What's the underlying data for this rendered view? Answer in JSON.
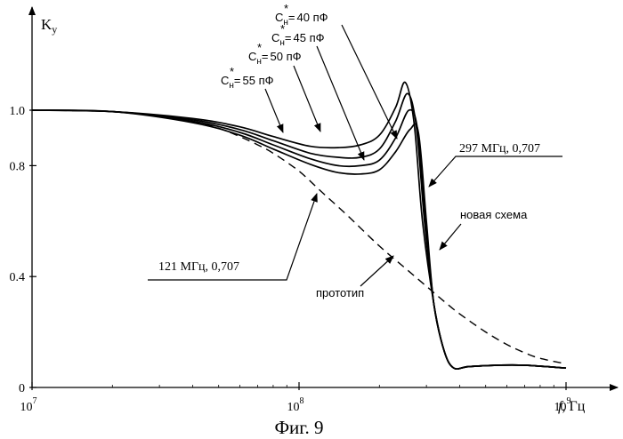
{
  "chart_data": {
    "type": "line",
    "caption": "Фиг. 9",
    "ylabel_main": "K",
    "ylabel_sub": "у",
    "xlabel_italic": "f",
    "xlabel_unit": ", Гц",
    "x_scale": "log",
    "xlim": [
      10000000,
      1000000000
    ],
    "ylim": [
      0,
      1.0
    ],
    "grid": false,
    "x_ticks": [
      {
        "value": 10000000,
        "base": "10",
        "exp": "7"
      },
      {
        "value": 100000000,
        "base": "10",
        "exp": "8"
      },
      {
        "value": 1000000000,
        "base": "10",
        "exp": "9"
      }
    ],
    "y_ticks": [
      {
        "value": 0,
        "label": "0"
      },
      {
        "value": 0.4,
        "label": "0.4"
      },
      {
        "value": 0.8,
        "label": "0.8"
      },
      {
        "value": 1.0,
        "label": "1.0"
      }
    ],
    "series": [
      {
        "name": "",
        "style": "solid",
        "cap_label": "55 пФ",
        "x": [
          10000000,
          20000000,
          40000000,
          60000000,
          80000000,
          110000000,
          140000000,
          170000000,
          200000000,
          230000000,
          250000000,
          270000000,
          290000000,
          320000000,
          350000000,
          380000000,
          430000000,
          550000000,
          700000000,
          1000000000
        ],
        "y": [
          1.0,
          0.995,
          0.97,
          0.94,
          0.905,
          0.87,
          0.865,
          0.875,
          0.91,
          1.01,
          1.1,
          0.95,
          0.6,
          0.3,
          0.13,
          0.07,
          0.075,
          0.08,
          0.08,
          0.07
        ]
      },
      {
        "name": "",
        "style": "solid",
        "cap_label": "50 пФ",
        "x": [
          10000000,
          20000000,
          40000000,
          60000000,
          80000000,
          110000000,
          140000000,
          170000000,
          200000000,
          230000000,
          255000000,
          275000000,
          295000000,
          320000000,
          350000000,
          380000000,
          430000000,
          550000000,
          700000000,
          1000000000
        ],
        "y": [
          1.0,
          0.995,
          0.965,
          0.93,
          0.89,
          0.845,
          0.83,
          0.83,
          0.86,
          0.96,
          1.06,
          0.94,
          0.6,
          0.3,
          0.13,
          0.07,
          0.075,
          0.08,
          0.08,
          0.07
        ]
      },
      {
        "name": "",
        "style": "solid",
        "cap_label": "45 пФ",
        "x": [
          10000000,
          20000000,
          40000000,
          60000000,
          80000000,
          110000000,
          140000000,
          170000000,
          200000000,
          230000000,
          258000000,
          278000000,
          298000000,
          320000000,
          350000000,
          380000000,
          430000000,
          550000000,
          700000000,
          1000000000
        ],
        "y": [
          1.0,
          0.995,
          0.96,
          0.92,
          0.875,
          0.825,
          0.8,
          0.8,
          0.82,
          0.9,
          1.0,
          0.93,
          0.6,
          0.3,
          0.13,
          0.07,
          0.075,
          0.08,
          0.08,
          0.07
        ]
      },
      {
        "name": "",
        "style": "solid",
        "cap_label": "40 пФ",
        "x": [
          10000000,
          20000000,
          40000000,
          60000000,
          80000000,
          110000000,
          140000000,
          170000000,
          200000000,
          230000000,
          260000000,
          280000000,
          300000000,
          320000000,
          350000000,
          380000000,
          430000000,
          550000000,
          700000000,
          1000000000
        ],
        "y": [
          1.0,
          0.995,
          0.955,
          0.91,
          0.86,
          0.805,
          0.775,
          0.77,
          0.785,
          0.85,
          0.93,
          0.92,
          0.6,
          0.3,
          0.13,
          0.07,
          0.075,
          0.08,
          0.08,
          0.07
        ]
      },
      {
        "name": "",
        "style": "dashed",
        "curve": "prototype",
        "x": [
          10000000,
          20000000,
          30000000,
          40000000,
          50000000,
          60000000,
          70000000,
          80000000,
          100000000,
          121000000,
          150000000,
          200000000,
          250000000,
          300000000,
          350000000,
          400000000,
          500000000,
          600000000,
          700000000,
          800000000,
          1000000000
        ],
        "y": [
          1.0,
          0.995,
          0.98,
          0.96,
          0.935,
          0.905,
          0.875,
          0.845,
          0.78,
          0.707,
          0.625,
          0.51,
          0.43,
          0.365,
          0.31,
          0.265,
          0.2,
          0.155,
          0.125,
          0.105,
          0.085
        ]
      }
    ],
    "annotations": {
      "cap_prefix": "C",
      "cap_sup": "*",
      "cap_sub": "н",
      "cap_eq": "=",
      "prototype": "прототип",
      "new_scheme": "новая схема",
      "point_121": "121 МГц, 0,707",
      "point_297": "297 МГц, 0,707"
    }
  }
}
